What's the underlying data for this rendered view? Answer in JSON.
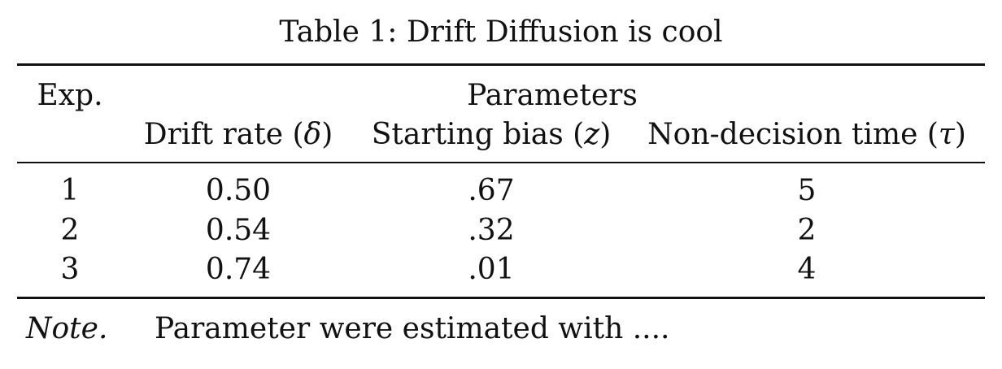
{
  "caption": "Table 1: Drift Diffusion is cool",
  "table": {
    "col_exp": "Exp.",
    "group_header": "Parameters",
    "columns": [
      {
        "label": "Drift rate (",
        "symbol": "δ",
        "close": ")"
      },
      {
        "label": "Starting bias (",
        "symbol": "z",
        "close": ")"
      },
      {
        "label": "Non-decision time (",
        "symbol": "τ",
        "close": ")"
      }
    ],
    "rows": [
      {
        "exp": "1",
        "drift": "0.50",
        "bias": ".67",
        "ndt": "5"
      },
      {
        "exp": "2",
        "drift": "0.54",
        "bias": ".32",
        "ndt": "2"
      },
      {
        "exp": "3",
        "drift": "0.74",
        "bias": ".01",
        "ndt": "4"
      }
    ]
  },
  "note": {
    "label": "Note.",
    "text": "Parameter were estimated with ...."
  }
}
